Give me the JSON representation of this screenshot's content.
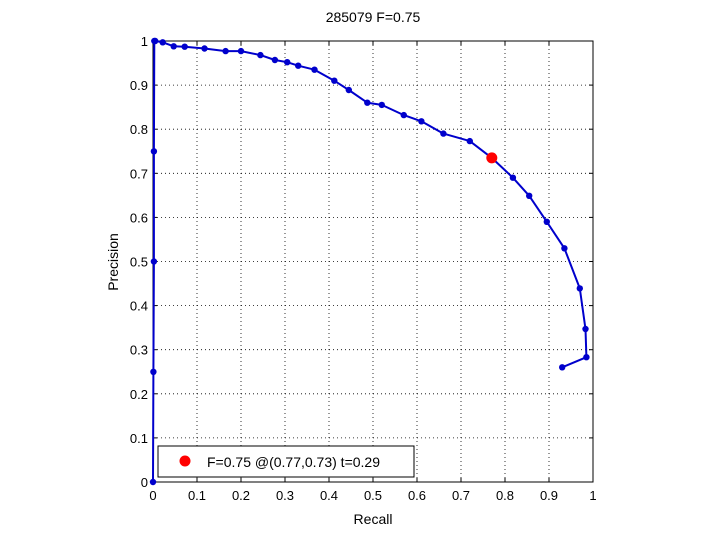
{
  "chart_data": {
    "type": "line",
    "title": "285079 F=0.75",
    "xlabel": "Recall",
    "ylabel": "Precision",
    "xlim": [
      0,
      1
    ],
    "ylim": [
      0,
      1
    ],
    "xticks": [
      "0",
      "0.1",
      "0.2",
      "0.3",
      "0.4",
      "0.5",
      "0.6",
      "0.7",
      "0.8",
      "0.9",
      "1"
    ],
    "yticks": [
      "0",
      "0.1",
      "0.2",
      "0.3",
      "0.4",
      "0.5",
      "0.6",
      "0.7",
      "0.8",
      "0.9",
      "1"
    ],
    "grid": true,
    "legend_position": "bottom-left",
    "series": [
      {
        "color": "#0000cc",
        "x": [
          0.0,
          0.001,
          0.002,
          0.002,
          0.003,
          0.005,
          0.022,
          0.047,
          0.072,
          0.117,
          0.165,
          0.2,
          0.244,
          0.277,
          0.305,
          0.33,
          0.367,
          0.412,
          0.445,
          0.487,
          0.52,
          0.57,
          0.61,
          0.66,
          0.72,
          0.77,
          0.818,
          0.855,
          0.895,
          0.935,
          0.97,
          0.983,
          0.985,
          0.93
        ],
        "y": [
          0.0,
          0.25,
          0.5,
          0.75,
          1.0,
          1.0,
          0.997,
          0.988,
          0.987,
          0.983,
          0.977,
          0.977,
          0.968,
          0.957,
          0.952,
          0.944,
          0.935,
          0.91,
          0.889,
          0.86,
          0.855,
          0.832,
          0.818,
          0.79,
          0.773,
          0.735,
          0.69,
          0.649,
          0.59,
          0.53,
          0.439,
          0.347,
          0.283,
          0.26
        ]
      }
    ],
    "best_point": {
      "x": 0.77,
      "y": 0.735,
      "color": "#ff0000",
      "label": "F=0.75 @(0.77,0.73) t=0.29"
    }
  }
}
